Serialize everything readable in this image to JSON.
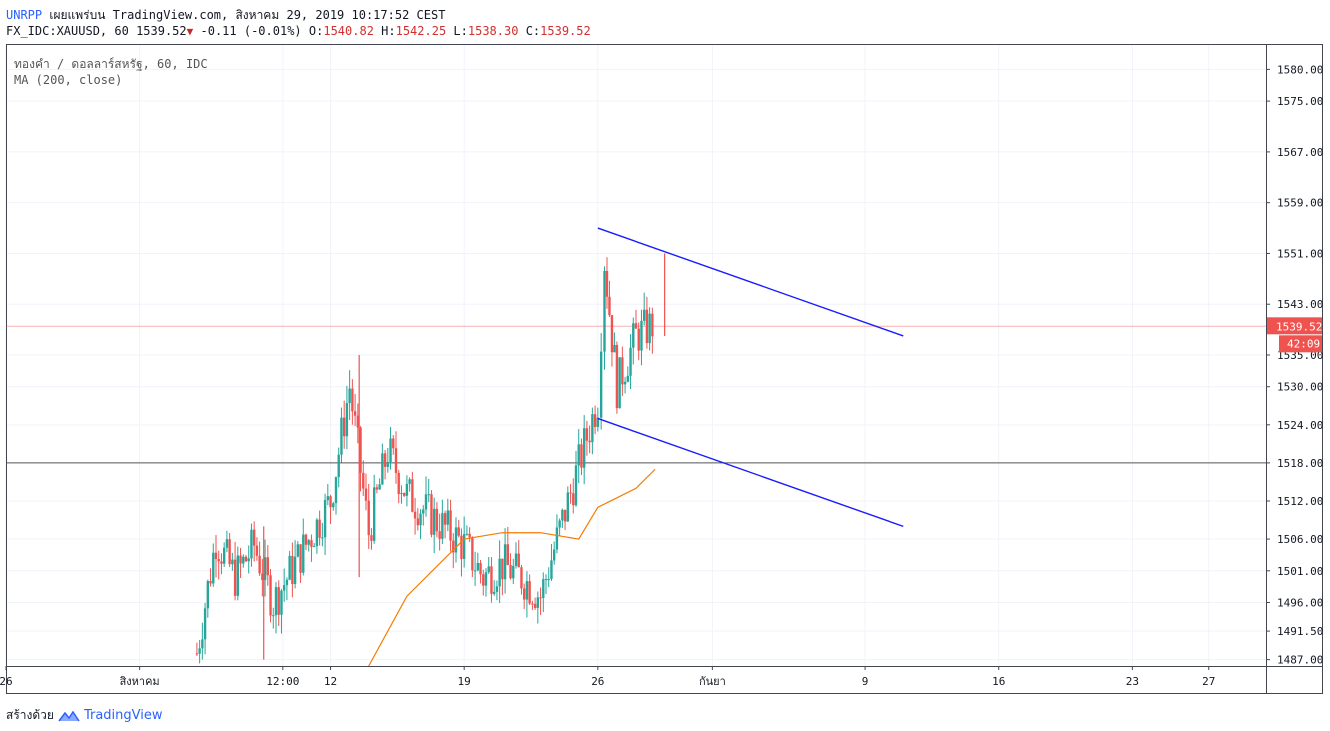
{
  "header": {
    "user": "UNRPP",
    "published": "เผยแพร่บน TradingView.com, สิงหาคม 29, 2019 10:17:52 CEST",
    "symbol_interval": "FX_IDC:XAUUSD, 60",
    "last": "1539.52",
    "change": "-0.11 (-0.01%)",
    "o_label": "O:",
    "o_value": "1540.82",
    "h_label": "H:",
    "h_value": "1542.25",
    "l_label": "L:",
    "l_value": "1538.30",
    "c_label": "C:",
    "c_value": "1539.52"
  },
  "legend": {
    "line1": "ทองคำ / ดอลลาร์สหรัฐ, 60, IDC",
    "line2": "MA (200, close)"
  },
  "footer": {
    "created_with": "สร้างด้วย",
    "brand": "TradingView"
  },
  "chart_data": {
    "type": "candlestick",
    "symbol": "XAUUSD",
    "interval": "60",
    "y_ticks": [
      "1580.00",
      "1575.00",
      "1567.00",
      "1559.00",
      "1551.00",
      "1543.00",
      "1535.00",
      "1530.00",
      "1524.00",
      "1518.00",
      "1512.00",
      "1506.00",
      "1501.00",
      "1496.00",
      "1491.50",
      "1487.00"
    ],
    "x_ticks": [
      "26",
      "สิงหาคม",
      "12:00",
      "12",
      "19",
      "26",
      "กันยา",
      "9",
      "16",
      "23",
      "27"
    ],
    "current_price_label": "1539.52",
    "countdown_label": "42:09",
    "colors": {
      "up": "#26a69a",
      "down": "#ef5350",
      "ma": "#f57c00",
      "trendline": "#1a1aff",
      "price_line": "#ef5350",
      "hline": "#555555"
    },
    "price_path": [
      [
        "2019-08-05",
        1488
      ],
      [
        "2019-08-06",
        1506
      ],
      [
        "2019-08-07",
        1500
      ],
      [
        "2019-08-08",
        1505
      ],
      [
        "2019-08-09",
        1496
      ],
      [
        "2019-08-12",
        1512
      ],
      [
        "2019-08-13",
        1530
      ],
      [
        "2019-08-14",
        1507
      ],
      [
        "2019-08-15",
        1520
      ],
      [
        "2019-08-16",
        1513
      ],
      [
        "2019-08-19",
        1505
      ],
      [
        "2019-08-20",
        1500
      ],
      [
        "2019-08-21",
        1502
      ],
      [
        "2019-08-22",
        1500
      ],
      [
        "2019-08-23",
        1497
      ],
      [
        "2019-08-26",
        1528
      ],
      [
        "2019-08-26",
        1550
      ],
      [
        "2019-08-27",
        1530
      ],
      [
        "2019-08-28",
        1538
      ],
      [
        "2019-08-29",
        1540
      ]
    ],
    "ma_200": [
      [
        "2019-08-14",
        1486
      ],
      [
        "2019-08-16",
        1497
      ],
      [
        "2019-08-19",
        1506
      ],
      [
        "2019-08-21",
        1507
      ],
      [
        "2019-08-23",
        1507
      ],
      [
        "2019-08-25",
        1506
      ],
      [
        "2019-08-26",
        1511
      ],
      [
        "2019-08-28",
        1514
      ],
      [
        "2019-08-29",
        1517
      ]
    ],
    "trendlines": [
      {
        "from": [
          "2019-08-26",
          1555
        ],
        "to": [
          "2019-09-11",
          1538
        ]
      },
      {
        "from": [
          "2019-08-26",
          1525
        ],
        "to": [
          "2019-09-11",
          1508
        ]
      }
    ],
    "horizontal_lines": [
      {
        "price": 1518
      }
    ],
    "price_line": 1539.52
  }
}
